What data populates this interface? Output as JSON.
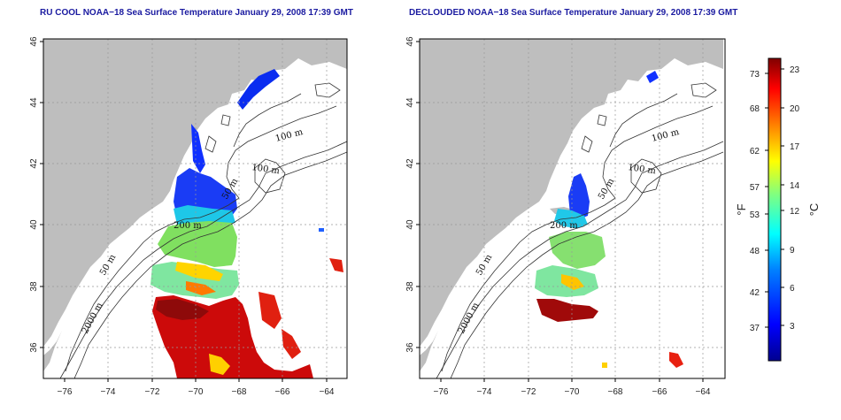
{
  "titles": {
    "left": "RU COOL NOAA−18 Sea Surface Temperature January 29, 2008 17:39 GMT",
    "right": "DECLOUDED NOAA−18 Sea Surface Temperature January 29, 2008 17:39 GMT"
  },
  "axes": {
    "x_ticks": [
      "−76",
      "−74",
      "−72",
      "−70",
      "−68",
      "−66",
      "−64"
    ],
    "y_ticks": [
      "36",
      "38",
      "40",
      "42",
      "44",
      "46"
    ]
  },
  "contour_labels": {
    "left": [
      "100 m",
      "100 m",
      "50 m",
      "200 m",
      "50 m",
      "2000 m"
    ],
    "right": [
      "100 m",
      "100 m",
      "50 m",
      "200 m",
      "50 m",
      "2000 m"
    ]
  },
  "colorbar": {
    "fahrenheit_label": "°F",
    "celsius_label": "°C",
    "fahrenheit_ticks": [
      "73",
      "68",
      "62",
      "57",
      "53",
      "48",
      "42",
      "37"
    ],
    "celsius_ticks": [
      "23",
      "20",
      "17",
      "14",
      "12",
      "9",
      "6",
      "3"
    ],
    "colors": [
      "#00008f",
      "#0000ff",
      "#0080ff",
      "#00ffff",
      "#80ff80",
      "#ffff00",
      "#ff8000",
      "#ff0000",
      "#800000"
    ]
  },
  "colors": {
    "land": "#bebebe",
    "ocean": "#ffffff",
    "title": "#1a1aa0"
  }
}
